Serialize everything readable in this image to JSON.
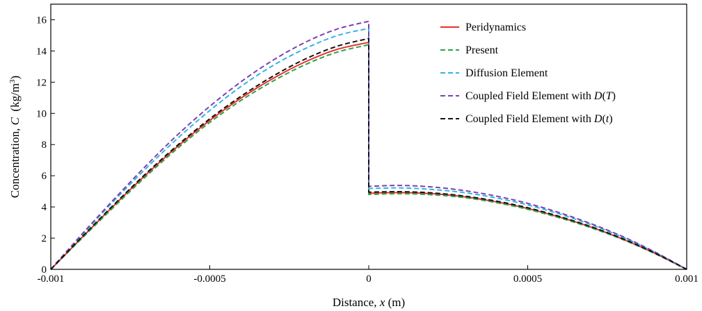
{
  "chart_data": {
    "type": "line",
    "title": "",
    "xlabel": {
      "prefix": "Distance, ",
      "var": "x",
      "suffix": " (m)"
    },
    "ylabel": {
      "prefix": "Concentration, ",
      "var": "C",
      "unit_pre": "  (kg/m",
      "unit_sup": "3",
      "unit_post": ")"
    },
    "xlim": [
      -0.001,
      0.001
    ],
    "ylim": [
      0,
      17
    ],
    "xticks": [
      -0.001,
      -0.0005,
      0,
      0.0005,
      0.001
    ],
    "xtick_labels": [
      "-0.001",
      "-0.0005",
      "0",
      "0.0005",
      "0.001"
    ],
    "yticks": [
      0,
      2,
      4,
      6,
      8,
      10,
      12,
      14,
      16
    ],
    "ytick_labels": [
      "0",
      "2",
      "4",
      "6",
      "8",
      "10",
      "12",
      "14",
      "16"
    ],
    "grid": false,
    "legend_position": "top-right",
    "series": [
      {
        "name": "Peridynamics",
        "legend_parts": [
          {
            "t": "Peridynamics"
          }
        ],
        "color": "#e8302a",
        "dash": "solid",
        "x": [
          -0.001,
          -0.0009,
          -0.0008,
          -0.0007,
          -0.0006,
          -0.0005,
          -0.0004,
          -0.0003,
          -0.0002,
          -0.0001,
          0,
          0,
          0.0001,
          0.0002,
          0.0003,
          0.0004,
          0.0005,
          0.0006,
          0.0007,
          0.0008,
          0.0009,
          0.001
        ],
        "y": [
          0,
          2.08,
          4.12,
          6.08,
          7.9,
          9.55,
          11.0,
          12.25,
          13.3,
          14.1,
          14.55,
          4.88,
          4.92,
          4.85,
          4.65,
          4.33,
          3.9,
          3.35,
          2.7,
          1.93,
          1.03,
          0
        ]
      },
      {
        "name": "Present",
        "legend_parts": [
          {
            "t": "Present"
          }
        ],
        "color": "#2ca24a",
        "dash": "dashed",
        "x": [
          -0.001,
          -0.0009,
          -0.0008,
          -0.0007,
          -0.0006,
          -0.0005,
          -0.0004,
          -0.0003,
          -0.0002,
          -0.0001,
          0,
          0,
          0.0001,
          0.0002,
          0.0003,
          0.0004,
          0.0005,
          0.0006,
          0.0007,
          0.0008,
          0.0009,
          0.001
        ],
        "y": [
          0,
          2.03,
          4.03,
          5.97,
          7.78,
          9.42,
          10.85,
          12.08,
          13.12,
          13.92,
          14.4,
          4.8,
          4.85,
          4.78,
          4.6,
          4.28,
          3.85,
          3.3,
          2.66,
          1.9,
          1.01,
          0
        ]
      },
      {
        "name": "Diffusion Element",
        "legend_parts": [
          {
            "t": "Diffusion Element"
          }
        ],
        "color": "#2fb4e6",
        "dash": "dashed",
        "x": [
          -0.001,
          -0.0009,
          -0.0008,
          -0.0007,
          -0.0006,
          -0.0005,
          -0.0004,
          -0.0003,
          -0.0002,
          -0.0001,
          0,
          0,
          0.0001,
          0.0002,
          0.0003,
          0.0004,
          0.0005,
          0.0006,
          0.0007,
          0.0008,
          0.0009,
          0.001
        ],
        "y": [
          0,
          2.25,
          4.42,
          6.48,
          8.42,
          10.18,
          11.75,
          13.08,
          14.15,
          14.98,
          15.45,
          5.18,
          5.22,
          5.12,
          4.92,
          4.58,
          4.13,
          3.55,
          2.86,
          2.05,
          1.09,
          0
        ]
      },
      {
        "name": "Coupled Field Element with D(T)",
        "legend_parts": [
          {
            "t": "Coupled Field Element with "
          },
          {
            "t": "D",
            "i": true
          },
          {
            "t": "("
          },
          {
            "t": "T",
            "i": true
          },
          {
            "t": ")"
          }
        ],
        "color": "#7d3fb2",
        "dash": "dashed",
        "x": [
          -0.001,
          -0.0009,
          -0.0008,
          -0.0007,
          -0.0006,
          -0.0005,
          -0.0004,
          -0.0003,
          -0.0002,
          -0.0001,
          0,
          0,
          0.0001,
          0.0002,
          0.0003,
          0.0004,
          0.0005,
          0.0006,
          0.0007,
          0.0008,
          0.0009,
          0.001
        ],
        "y": [
          0,
          2.3,
          4.52,
          6.65,
          8.65,
          10.45,
          12.05,
          13.42,
          14.55,
          15.4,
          15.9,
          5.32,
          5.38,
          5.28,
          5.05,
          4.7,
          4.23,
          3.63,
          2.92,
          2.09,
          1.11,
          0
        ]
      },
      {
        "name": "Coupled Field Element with D(t)",
        "legend_parts": [
          {
            "t": "Coupled Field Element with "
          },
          {
            "t": "D",
            "i": true
          },
          {
            "t": "("
          },
          {
            "t": "t",
            "i": true
          },
          {
            "t": ")"
          }
        ],
        "color": "#111111",
        "dash": "dashed",
        "x": [
          -0.001,
          -0.0009,
          -0.0008,
          -0.0007,
          -0.0006,
          -0.0005,
          -0.0004,
          -0.0003,
          -0.0002,
          -0.0001,
          0,
          0,
          0.0001,
          0.0002,
          0.0003,
          0.0004,
          0.0005,
          0.0006,
          0.0007,
          0.0008,
          0.0009,
          0.001
        ],
        "y": [
          0,
          2.12,
          4.18,
          6.15,
          7.98,
          9.65,
          11.12,
          12.4,
          13.48,
          14.3,
          14.8,
          4.95,
          4.98,
          4.9,
          4.7,
          4.38,
          3.95,
          3.39,
          2.73,
          1.95,
          1.04,
          0
        ]
      }
    ]
  }
}
